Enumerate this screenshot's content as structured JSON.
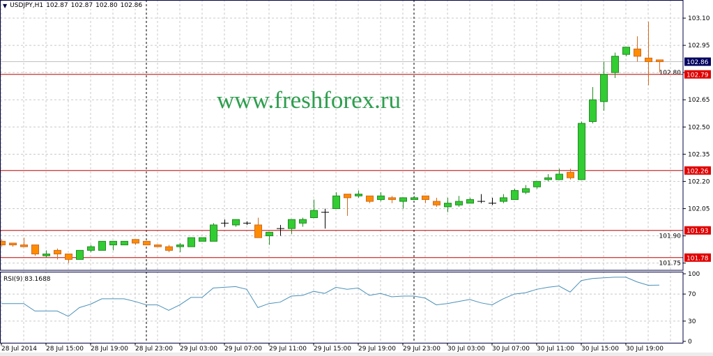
{
  "header": {
    "symbol": "USDJPY,H1",
    "open": "102.87",
    "high": "102.87",
    "low": "102.80",
    "close": "102.86"
  },
  "watermark": "www.freshforex.ru",
  "rsi_title": "RSI(9) 83.1688",
  "colors": {
    "bull": "#32cd32",
    "bull_border": "#228b22",
    "bear": "#ff8c00",
    "bear_border": "#d2691e",
    "doji": "#000000",
    "level_line": "#c00000",
    "level_label": "#e00000",
    "current_label": "#000060",
    "rsi_line": "#4a90b8",
    "frame": "#000040",
    "grid": "#c8c8c8"
  },
  "chart_data": [
    {
      "type": "candlestick",
      "title": "USDJPY,H1",
      "ylim": [
        101.71,
        103.2
      ],
      "grid": true,
      "y_ticks": [
        "103.10",
        "102.95",
        "102.80",
        "102.65",
        "102.50",
        "102.35",
        "102.20",
        "102.05",
        "101.90",
        "101.75"
      ],
      "x_tick_labels": [
        "28 Jul 2014",
        "28 Jul 15:00",
        "28 Jul 19:00",
        "28 Jul 23:00",
        "29 Jul 03:00",
        "29 Jul 07:00",
        "29 Jul 11:00",
        "29 Jul 15:00",
        "29 Jul 19:00",
        "29 Jul 23:00",
        "30 Jul 03:00",
        "30 Jul 07:00",
        "30 Jul 11:00",
        "30 Jul 15:00",
        "30 Jul 19:00"
      ],
      "day_separators": [
        "29 Jul 00:00",
        "30 Jul 00:00"
      ],
      "x": [
        "28 Jul 11:00",
        "28 Jul 12:00",
        "28 Jul 13:00",
        "28 Jul 14:00",
        "28 Jul 15:00",
        "28 Jul 16:00",
        "28 Jul 17:00",
        "28 Jul 18:00",
        "28 Jul 19:00",
        "28 Jul 20:00",
        "28 Jul 21:00",
        "28 Jul 22:00",
        "28 Jul 23:00",
        "29 Jul 00:00",
        "29 Jul 01:00",
        "29 Jul 02:00",
        "29 Jul 03:00",
        "29 Jul 04:00",
        "29 Jul 05:00",
        "29 Jul 06:00",
        "29 Jul 07:00",
        "29 Jul 08:00",
        "29 Jul 09:00",
        "29 Jul 10:00",
        "29 Jul 11:00",
        "29 Jul 12:00",
        "29 Jul 13:00",
        "29 Jul 14:00",
        "29 Jul 15:00",
        "29 Jul 16:00",
        "29 Jul 17:00",
        "29 Jul 18:00",
        "29 Jul 19:00",
        "29 Jul 20:00",
        "29 Jul 21:00",
        "29 Jul 22:00",
        "29 Jul 23:00",
        "30 Jul 00:00",
        "30 Jul 01:00",
        "30 Jul 02:00",
        "30 Jul 03:00",
        "30 Jul 04:00",
        "30 Jul 05:00",
        "30 Jul 06:00",
        "30 Jul 07:00",
        "30 Jul 08:00",
        "30 Jul 09:00",
        "30 Jul 10:00",
        "30 Jul 11:00",
        "30 Jul 12:00",
        "30 Jul 13:00",
        "30 Jul 14:00",
        "30 Jul 15:00",
        "30 Jul 16:00",
        "30 Jul 17:00",
        "30 Jul 18:00",
        "30 Jul 19:00",
        "30 Jul 20:00",
        "30 Jul 21:00",
        "30 Jul 22:00"
      ],
      "ohlc": [
        [
          101.87,
          101.88,
          101.84,
          101.85
        ],
        [
          101.86,
          101.86,
          101.84,
          101.85
        ],
        [
          101.85,
          101.89,
          101.84,
          101.84
        ],
        [
          101.85,
          101.85,
          101.79,
          101.8
        ],
        [
          101.79,
          101.82,
          101.78,
          101.8
        ],
        [
          101.82,
          101.83,
          101.77,
          101.8
        ],
        [
          101.8,
          101.8,
          101.75,
          101.77
        ],
        [
          101.77,
          101.82,
          101.77,
          101.82
        ],
        [
          101.82,
          101.85,
          101.81,
          101.84
        ],
        [
          101.82,
          101.87,
          101.82,
          101.87
        ],
        [
          101.85,
          101.87,
          101.82,
          101.87
        ],
        [
          101.85,
          101.87,
          101.85,
          101.87
        ],
        [
          101.88,
          101.88,
          101.85,
          101.86
        ],
        [
          101.87,
          101.87,
          101.85,
          101.85
        ],
        [
          101.85,
          101.85,
          101.84,
          101.84
        ],
        [
          101.84,
          101.85,
          101.81,
          101.82
        ],
        [
          101.84,
          101.86,
          101.81,
          101.85
        ],
        [
          101.84,
          101.89,
          101.84,
          101.89
        ],
        [
          101.87,
          101.89,
          101.87,
          101.89
        ],
        [
          101.87,
          101.97,
          101.87,
          101.96
        ],
        [
          101.97,
          101.99,
          101.95,
          101.97
        ],
        [
          101.96,
          101.99,
          101.95,
          101.99
        ],
        [
          101.97,
          101.98,
          101.96,
          101.97
        ],
        [
          101.96,
          102.0,
          101.89,
          101.89
        ],
        [
          101.9,
          101.92,
          101.85,
          101.92
        ],
        [
          101.94,
          101.96,
          101.9,
          101.94
        ],
        [
          101.94,
          101.99,
          101.91,
          101.99
        ],
        [
          101.97,
          102.0,
          101.95,
          101.99
        ],
        [
          102.0,
          102.1,
          102.0,
          102.04
        ],
        [
          102.03,
          102.05,
          101.94,
          102.03
        ],
        [
          102.05,
          102.14,
          102.05,
          102.12
        ],
        [
          102.13,
          102.13,
          102.01,
          102.11
        ],
        [
          102.12,
          102.15,
          102.11,
          102.13
        ],
        [
          102.12,
          102.12,
          102.08,
          102.09
        ],
        [
          102.1,
          102.14,
          102.09,
          102.12
        ],
        [
          102.11,
          102.12,
          102.08,
          102.1
        ],
        [
          102.09,
          102.11,
          102.05,
          102.11
        ],
        [
          102.1,
          102.12,
          102.1,
          102.11
        ],
        [
          102.12,
          102.12,
          102.08,
          102.1
        ],
        [
          102.09,
          102.11,
          102.06,
          102.07
        ],
        [
          102.06,
          102.11,
          102.03,
          102.08
        ],
        [
          102.07,
          102.12,
          102.06,
          102.09
        ],
        [
          102.08,
          102.11,
          102.08,
          102.1
        ],
        [
          102.09,
          102.13,
          102.08,
          102.09
        ],
        [
          102.08,
          102.11,
          102.07,
          102.08
        ],
        [
          102.09,
          102.13,
          102.08,
          102.11
        ],
        [
          102.1,
          102.16,
          102.1,
          102.15
        ],
        [
          102.14,
          102.18,
          102.13,
          102.16
        ],
        [
          102.17,
          102.2,
          102.16,
          102.2
        ],
        [
          102.21,
          102.24,
          102.2,
          102.22
        ],
        [
          102.21,
          102.27,
          102.21,
          102.24
        ],
        [
          102.25,
          102.27,
          102.21,
          102.22
        ],
        [
          102.21,
          102.53,
          102.21,
          102.52
        ],
        [
          102.53,
          102.72,
          102.52,
          102.65
        ],
        [
          102.64,
          102.86,
          102.59,
          102.79
        ],
        [
          102.8,
          102.91,
          102.77,
          102.89
        ],
        [
          102.9,
          102.94,
          102.89,
          102.94
        ],
        [
          102.93,
          103.0,
          102.86,
          102.89
        ],
        [
          102.88,
          103.08,
          102.73,
          102.86
        ],
        [
          102.87,
          102.87,
          102.8,
          102.86
        ]
      ],
      "levels": [
        "102.79",
        "102.26",
        "101.93",
        "101.78"
      ],
      "current_price": "102.86"
    },
    {
      "type": "line",
      "title": "RSI(9) 83.1688",
      "ylim": [
        0,
        100
      ],
      "grid": true,
      "y_ticks": [
        "100",
        "70",
        "30",
        "0"
      ],
      "series": [
        {
          "values": [
            56,
            56,
            56,
            45,
            45,
            45,
            37,
            50,
            55,
            63,
            63,
            63,
            59,
            54,
            54,
            46,
            54,
            65,
            65,
            79,
            80,
            81,
            77,
            50,
            56,
            58,
            67,
            68,
            74,
            71,
            80,
            77,
            79,
            68,
            71,
            66,
            67,
            67,
            64,
            54,
            56,
            59,
            62,
            57,
            54,
            63,
            70,
            72,
            77,
            80,
            82,
            73,
            90,
            93,
            94,
            95,
            95,
            88,
            83,
            83.17
          ]
        }
      ]
    }
  ]
}
